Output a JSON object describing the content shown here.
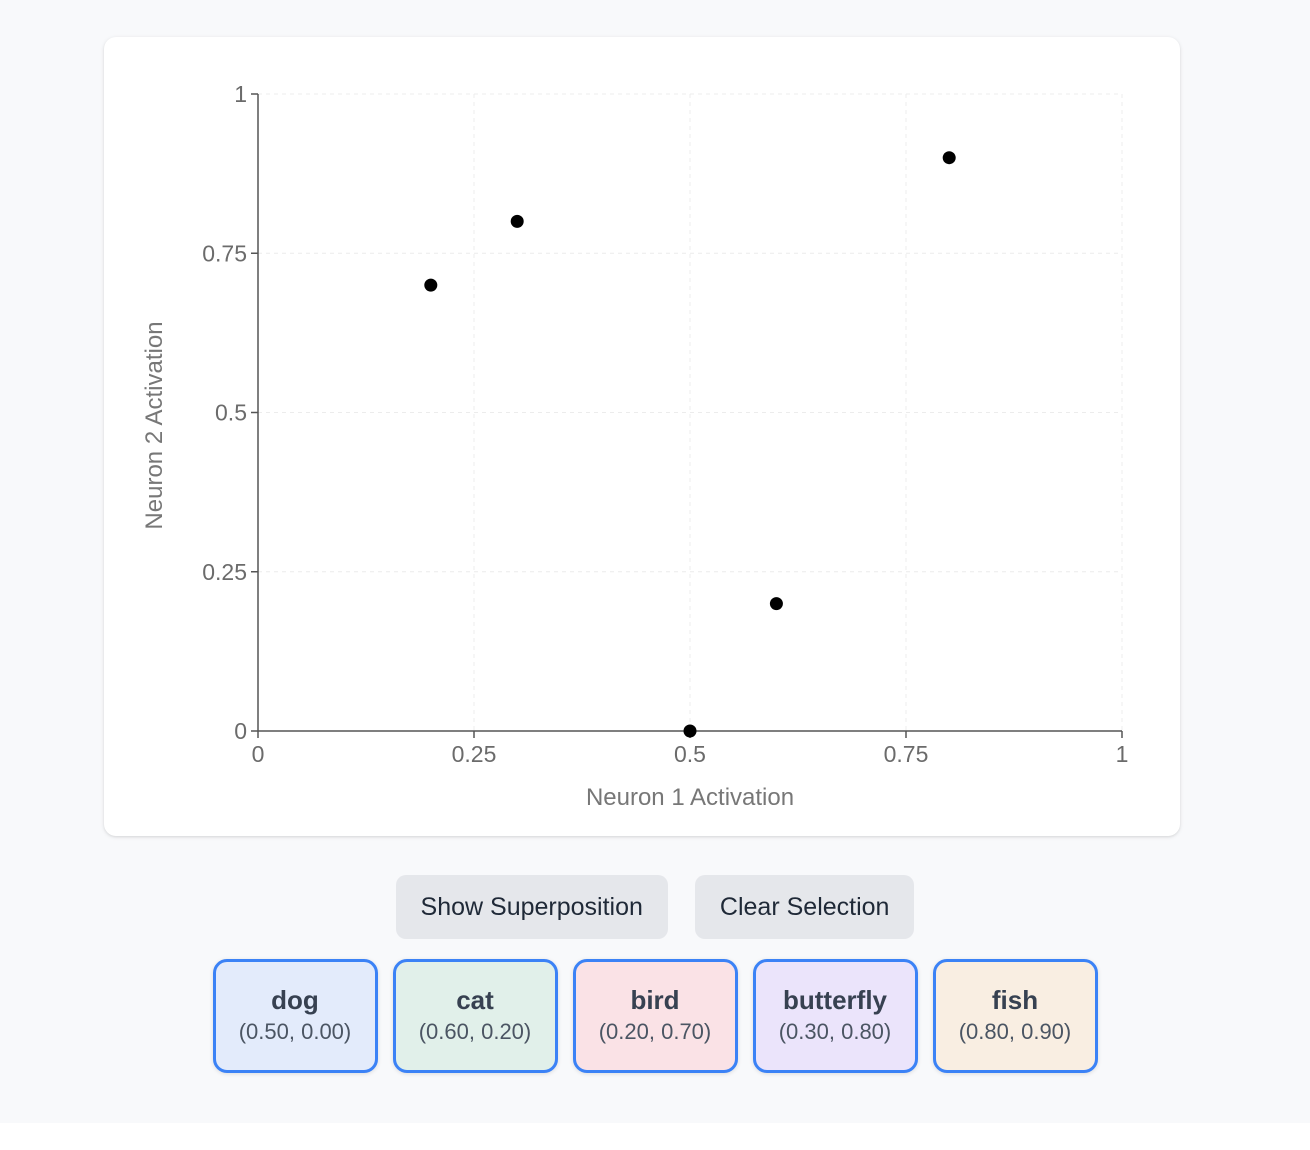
{
  "chart_data": {
    "type": "scatter",
    "xlabel": "Neuron 1 Activation",
    "ylabel": "Neuron 2 Activation",
    "xlim": [
      0,
      1
    ],
    "ylim": [
      0,
      1
    ],
    "xticks": [
      "0",
      "0.25",
      "0.5",
      "0.75",
      "1"
    ],
    "yticks": [
      "0",
      "0.25",
      "0.5",
      "0.75",
      "1"
    ],
    "grid": true,
    "points": [
      {
        "label": "dog",
        "x": 0.5,
        "y": 0.0
      },
      {
        "label": "cat",
        "x": 0.6,
        "y": 0.2
      },
      {
        "label": "bird",
        "x": 0.2,
        "y": 0.7
      },
      {
        "label": "butterfly",
        "x": 0.3,
        "y": 0.8
      },
      {
        "label": "fish",
        "x": 0.8,
        "y": 0.9
      }
    ],
    "point_color": "#000000"
  },
  "controls": {
    "show_superposition_label": "Show Superposition",
    "clear_selection_label": "Clear Selection"
  },
  "concepts": [
    {
      "name": "dog",
      "coords": "(0.50, 0.00)",
      "color": "#e3ebfb"
    },
    {
      "name": "cat",
      "coords": "(0.60, 0.20)",
      "color": "#e1f0ea"
    },
    {
      "name": "bird",
      "coords": "(0.20, 0.70)",
      "color": "#fae2e6"
    },
    {
      "name": "butterfly",
      "coords": "(0.30, 0.80)",
      "color": "#ebe4fb"
    },
    {
      "name": "fish",
      "coords": "(0.80, 0.90)",
      "color": "#f9eee2"
    }
  ],
  "colors": {
    "accent_border": "#3b82f6",
    "button_bg": "#e5e7eb"
  }
}
